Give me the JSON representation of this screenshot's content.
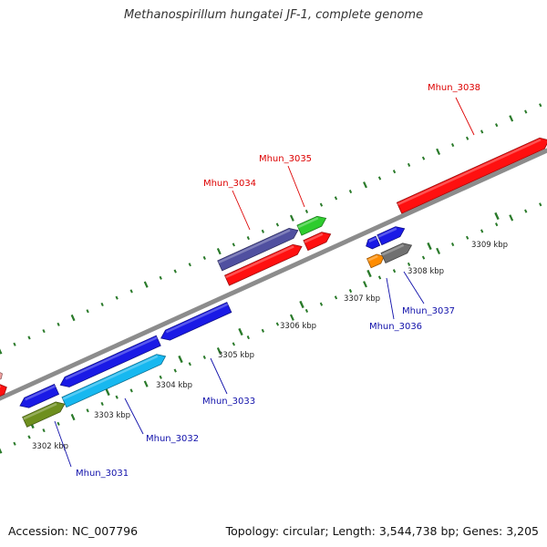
{
  "title": "Methanospirillum hungatei JF-1, complete genome",
  "footer": {
    "accession": "Accession: NC_007796",
    "topology": "Topology: circular; Length: 3,544,738 bp; Genes: 3,205"
  },
  "colors": {
    "backbone": "#8c8c8c",
    "ticks": "#2a7a2a",
    "label_forward": "#dd0000",
    "label_reverse": "#1010aa"
  },
  "ticks": [
    {
      "label": "3302 kbp"
    },
    {
      "label": "3303 kbp"
    },
    {
      "label": "3304 kbp"
    },
    {
      "label": "3305 kbp"
    },
    {
      "label": "3306 kbp"
    },
    {
      "label": "3307 kbp"
    },
    {
      "label": "3308 kbp"
    },
    {
      "label": "3309 kbp"
    }
  ],
  "features": [
    {
      "id": "f-red-edge-top",
      "color": "#f0a0a0",
      "label": ""
    },
    {
      "id": "f-red-edge",
      "color": "#ff1010",
      "label": ""
    },
    {
      "id": "f-blue-a",
      "color": "#1a1ae6",
      "label": ""
    },
    {
      "id": "f-olive",
      "color": "#6e8f1e",
      "label": ""
    },
    {
      "id": "f-3031",
      "color": "#1a1ae6",
      "label": ""
    },
    {
      "id": "f-cyan",
      "color": "#17b8f0",
      "label": ""
    },
    {
      "id": "f-3033",
      "color": "#1a1ae6",
      "label": ""
    },
    {
      "id": "f-3034",
      "color": "#5050a0",
      "label": ""
    },
    {
      "id": "f-red-b",
      "color": "#ff1010",
      "label": ""
    },
    {
      "id": "f-3035",
      "color": "#2ecc2e",
      "label": ""
    },
    {
      "id": "f-red-c",
      "color": "#ff1010",
      "label": ""
    },
    {
      "id": "f-3036",
      "color": "#1a1ae6",
      "label": ""
    },
    {
      "id": "f-blue-e",
      "color": "#1a1ae6",
      "label": ""
    },
    {
      "id": "f-orange",
      "color": "#ff8c00",
      "label": ""
    },
    {
      "id": "f-3037",
      "color": "#707070",
      "label": ""
    },
    {
      "id": "f-3038",
      "color": "#ff1010",
      "label": ""
    }
  ],
  "labels": [
    {
      "text": "Mhun_3031",
      "strand": "reverse"
    },
    {
      "text": "Mhun_3032",
      "strand": "reverse"
    },
    {
      "text": "Mhun_3033",
      "strand": "reverse"
    },
    {
      "text": "Mhun_3034",
      "strand": "forward"
    },
    {
      "text": "Mhun_3035",
      "strand": "forward"
    },
    {
      "text": "Mhun_3036",
      "strand": "reverse"
    },
    {
      "text": "Mhun_3037",
      "strand": "reverse"
    },
    {
      "text": "Mhun_3038",
      "strand": "forward"
    }
  ]
}
